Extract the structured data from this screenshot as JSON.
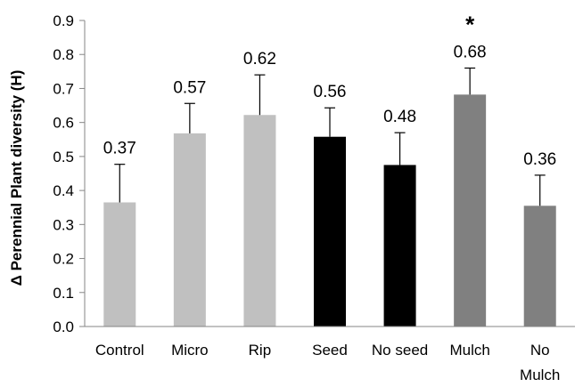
{
  "chart_data": {
    "type": "bar",
    "ylabel": "Δ Perennial Plant diversity (H)",
    "ylim": [
      0,
      0.9
    ],
    "yticks": [
      "0.0",
      "0.1",
      "0.2",
      "0.3",
      "0.4",
      "0.5",
      "0.6",
      "0.7",
      "0.8",
      "0.9"
    ],
    "grid": false,
    "legend": "none",
    "categories": [
      [
        "Control"
      ],
      [
        "Micro"
      ],
      [
        "Rip"
      ],
      [
        "Seed"
      ],
      [
        "No seed"
      ],
      [
        "Mulch"
      ],
      [
        "No",
        "Mulch"
      ]
    ],
    "values": [
      0.365,
      0.568,
      0.622,
      0.558,
      0.475,
      0.682,
      0.355
    ],
    "errors": [
      0.112,
      0.088,
      0.118,
      0.085,
      0.095,
      0.078,
      0.09
    ],
    "data_labels": [
      "0.37",
      "0.57",
      "0.62",
      "0.56",
      "0.48",
      "0.68",
      "0.36"
    ],
    "bar_colors": [
      "#c0c0c0",
      "#c0c0c0",
      "#c0c0c0",
      "#000000",
      "#000000",
      "#808080",
      "#808080"
    ],
    "annotations": [
      {
        "category_index": 5,
        "text": "*"
      }
    ]
  }
}
